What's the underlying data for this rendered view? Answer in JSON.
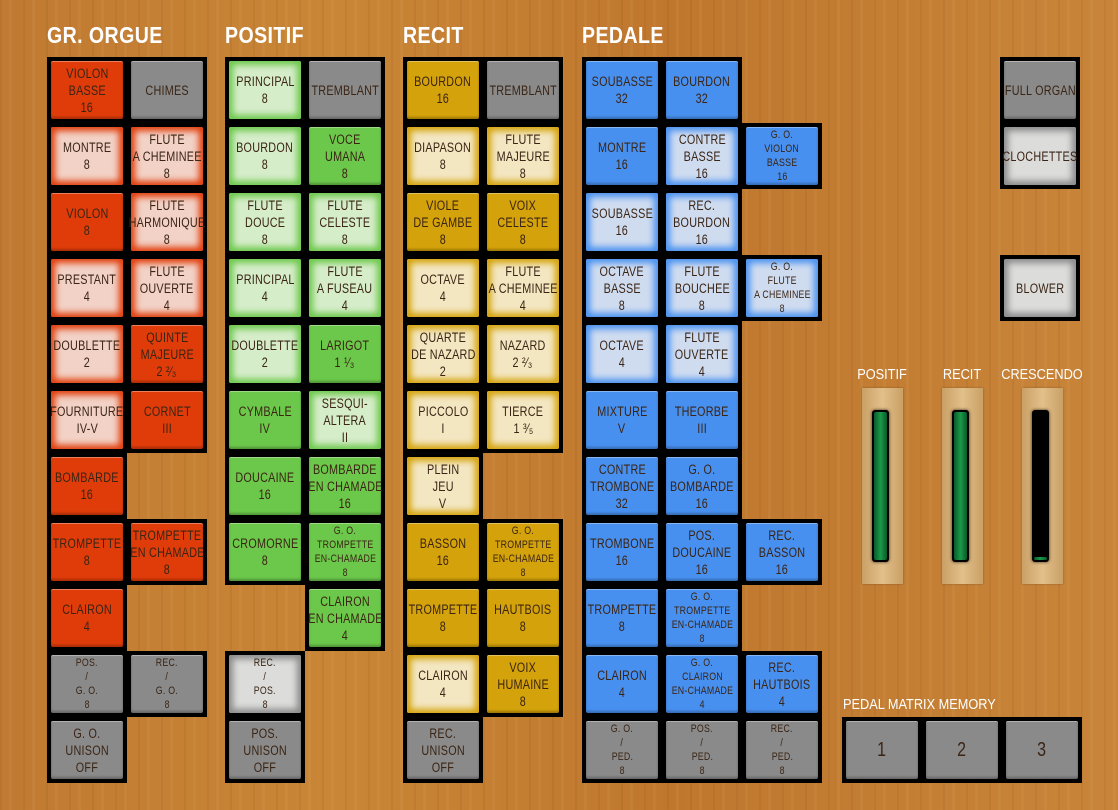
{
  "colors": {
    "gr_orgue": {
      "on": "#e03c0a",
      "off": "#f2d2c6"
    },
    "positif": {
      "on": "#6cc84a",
      "off": "#d6edca"
    },
    "recit": {
      "on": "#d4a20a",
      "off": "#f3e7c2"
    },
    "pedale": {
      "on": "#4890f0",
      "off": "#cfdcf0"
    },
    "coupler": {
      "on": "#8a8a8a",
      "off": "#dcdcda"
    }
  },
  "divisions": [
    {
      "title": "GR. ORGUE",
      "key": "gr_orgue",
      "rows": [
        [
          {
            "lines": [
              "VIOLON",
              "BASSE",
              "16"
            ],
            "on": true
          },
          {
            "lines": [
              "CHIMES"
            ],
            "on": true,
            "coupler": true
          }
        ],
        [
          {
            "lines": [
              "MONTRE",
              "8"
            ],
            "on": false
          },
          {
            "lines": [
              "FLUTE",
              "A CHEMINEE",
              "8"
            ],
            "on": false
          }
        ],
        [
          {
            "lines": [
              "VIOLON",
              "8"
            ],
            "on": true
          },
          {
            "lines": [
              "FLUTE",
              "HARMONIQUE",
              "8"
            ],
            "on": false
          }
        ],
        [
          {
            "lines": [
              "PRESTANT",
              "4"
            ],
            "on": false
          },
          {
            "lines": [
              "FLUTE",
              "OUVERTE",
              "4"
            ],
            "on": false
          }
        ],
        [
          {
            "lines": [
              "DOUBLETTE",
              "2"
            ],
            "on": false
          },
          {
            "lines": [
              "QUINTE",
              "MAJEURE",
              "2 ²⁄₃"
            ],
            "on": true
          }
        ],
        [
          {
            "lines": [
              "FOURNITURE",
              "IV-V"
            ],
            "on": false
          },
          {
            "lines": [
              "CORNET",
              "III"
            ],
            "on": true
          }
        ],
        [
          {
            "lines": [
              "BOMBARDE",
              "16"
            ],
            "on": true
          },
          null
        ],
        [
          {
            "lines": [
              "TROMPETTE",
              "8"
            ],
            "on": true
          },
          {
            "lines": [
              "TROMPETTE",
              "EN CHAMADE",
              "8"
            ],
            "on": true
          }
        ],
        [
          {
            "lines": [
              "CLAIRON",
              "4"
            ],
            "on": true
          },
          null
        ],
        [
          {
            "lines": [
              "POS.",
              "/",
              "G. O.",
              "8"
            ],
            "on": true,
            "coupler": true
          },
          {
            "lines": [
              "REC.",
              "/",
              "G. O.",
              "8"
            ],
            "on": true,
            "coupler": true
          }
        ],
        [
          {
            "lines": [
              "G. O.",
              "UNISON",
              "OFF"
            ],
            "on": true,
            "coupler": true
          },
          null
        ]
      ]
    },
    {
      "title": "POSITIF",
      "key": "positif",
      "rows": [
        [
          {
            "lines": [
              "PRINCIPAL",
              "8"
            ],
            "on": false
          },
          {
            "lines": [
              "TREMBLANT"
            ],
            "on": true,
            "coupler": true
          }
        ],
        [
          {
            "lines": [
              "BOURDON",
              "8"
            ],
            "on": false
          },
          {
            "lines": [
              "VOCE",
              "UMANA",
              "8"
            ],
            "on": true
          }
        ],
        [
          {
            "lines": [
              "FLUTE",
              "DOUCE",
              "8"
            ],
            "on": false
          },
          {
            "lines": [
              "FLUTE",
              "CELESTE",
              "8"
            ],
            "on": false
          }
        ],
        [
          {
            "lines": [
              "PRINCIPAL",
              "4"
            ],
            "on": false
          },
          {
            "lines": [
              "FLUTE",
              "A FUSEAU",
              "4"
            ],
            "on": false
          }
        ],
        [
          {
            "lines": [
              "DOUBLETTE",
              "2"
            ],
            "on": false
          },
          {
            "lines": [
              "LARIGOT",
              "1 ¹⁄₃"
            ],
            "on": true
          }
        ],
        [
          {
            "lines": [
              "CYMBALE",
              "IV"
            ],
            "on": true
          },
          {
            "lines": [
              "SESQUI-",
              "ALTERA",
              "II"
            ],
            "on": false
          }
        ],
        [
          {
            "lines": [
              "DOUCAINE",
              "16"
            ],
            "on": true
          },
          {
            "lines": [
              "BOMBARDE",
              "EN CHAMADE",
              "16"
            ],
            "on": true
          }
        ],
        [
          {
            "lines": [
              "CROMORNE",
              "8"
            ],
            "on": true
          },
          {
            "lines": [
              "G. O.",
              "TROMPETTE",
              "EN-CHAMADE",
              "8"
            ],
            "on": true
          }
        ],
        [
          null,
          {
            "lines": [
              "CLAIRON",
              "EN CHAMADE",
              "4"
            ],
            "on": true
          }
        ],
        [
          {
            "lines": [
              "REC.",
              "/",
              "POS.",
              "8"
            ],
            "on": false,
            "coupler": true
          },
          null
        ],
        [
          {
            "lines": [
              "POS.",
              "UNISON",
              "OFF"
            ],
            "on": true,
            "coupler": true
          },
          null
        ]
      ]
    },
    {
      "title": "RECIT",
      "key": "recit",
      "rows": [
        [
          {
            "lines": [
              "BOURDON",
              "16"
            ],
            "on": true
          },
          {
            "lines": [
              "TREMBLANT"
            ],
            "on": true,
            "coupler": true
          }
        ],
        [
          {
            "lines": [
              "DIAPASON",
              "8"
            ],
            "on": false
          },
          {
            "lines": [
              "FLUTE",
              "MAJEURE",
              "8"
            ],
            "on": false
          }
        ],
        [
          {
            "lines": [
              "VIOLE",
              "DE GAMBE",
              "8"
            ],
            "on": true
          },
          {
            "lines": [
              "VOIX",
              "CELESTE",
              "8"
            ],
            "on": true
          }
        ],
        [
          {
            "lines": [
              "OCTAVE",
              "4"
            ],
            "on": false
          },
          {
            "lines": [
              "FLUTE",
              "A CHEMINEE",
              "4"
            ],
            "on": false
          }
        ],
        [
          {
            "lines": [
              "QUARTE",
              "DE NAZARD",
              "2"
            ],
            "on": false
          },
          {
            "lines": [
              "NAZARD",
              "2 ²⁄₃"
            ],
            "on": false
          }
        ],
        [
          {
            "lines": [
              "PICCOLO",
              "I"
            ],
            "on": false
          },
          {
            "lines": [
              "TIERCE",
              "1 ³⁄₅"
            ],
            "on": false
          }
        ],
        [
          {
            "lines": [
              "PLEIN",
              "JEU",
              "V"
            ],
            "on": false
          },
          null
        ],
        [
          {
            "lines": [
              "BASSON",
              "16"
            ],
            "on": true
          },
          {
            "lines": [
              "G. O.",
              "TROMPETTE",
              "EN-CHAMADE",
              "8"
            ],
            "on": true
          }
        ],
        [
          {
            "lines": [
              "TROMPETTE",
              "8"
            ],
            "on": true
          },
          {
            "lines": [
              "HAUTBOIS",
              "8"
            ],
            "on": true
          }
        ],
        [
          {
            "lines": [
              "CLAIRON",
              "4"
            ],
            "on": false
          },
          {
            "lines": [
              "VOIX",
              "HUMAINE",
              "8"
            ],
            "on": true
          }
        ],
        [
          {
            "lines": [
              "REC.",
              "UNISON",
              "OFF"
            ],
            "on": true,
            "coupler": true
          },
          null
        ]
      ]
    },
    {
      "title": "PEDALE",
      "key": "pedale",
      "rows": [
        [
          {
            "lines": [
              "SOUBASSE",
              "32"
            ],
            "on": true
          },
          {
            "lines": [
              "BOURDON",
              "32"
            ],
            "on": true
          },
          null
        ],
        [
          {
            "lines": [
              "MONTRE",
              "16"
            ],
            "on": true
          },
          {
            "lines": [
              "CONTRE",
              "BASSE",
              "16"
            ],
            "on": false
          },
          {
            "lines": [
              "G. O.",
              "VIOLON",
              "BASSE",
              "16"
            ],
            "on": true
          }
        ],
        [
          {
            "lines": [
              "SOUBASSE",
              "16"
            ],
            "on": false
          },
          {
            "lines": [
              "REC.",
              "BOURDON",
              "16"
            ],
            "on": false
          },
          null
        ],
        [
          {
            "lines": [
              "OCTAVE",
              "BASSE",
              "8"
            ],
            "on": false
          },
          {
            "lines": [
              "FLUTE",
              "BOUCHEE",
              "8"
            ],
            "on": false
          },
          {
            "lines": [
              "G. O.",
              "FLUTE",
              "A CHEMINEE",
              "8"
            ],
            "on": false
          }
        ],
        [
          {
            "lines": [
              "OCTAVE",
              "4"
            ],
            "on": false
          },
          {
            "lines": [
              "FLUTE",
              "OUVERTE",
              "4"
            ],
            "on": false
          },
          null
        ],
        [
          {
            "lines": [
              "MIXTURE",
              "V"
            ],
            "on": true
          },
          {
            "lines": [
              "THEORBE",
              "III"
            ],
            "on": true
          },
          null
        ],
        [
          {
            "lines": [
              "CONTRE",
              "TROMBONE",
              "32"
            ],
            "on": true
          },
          {
            "lines": [
              "G. O.",
              "BOMBARDE",
              "16"
            ],
            "on": true
          },
          null
        ],
        [
          {
            "lines": [
              "TROMBONE",
              "16"
            ],
            "on": true
          },
          {
            "lines": [
              "POS.",
              "DOUCAINE",
              "16"
            ],
            "on": true
          },
          {
            "lines": [
              "REC.",
              "BASSON",
              "16"
            ],
            "on": true
          }
        ],
        [
          {
            "lines": [
              "TROMPETTE",
              "8"
            ],
            "on": true
          },
          {
            "lines": [
              "G. O.",
              "TROMPETTE",
              "EN-CHAMADE",
              "8"
            ],
            "on": true
          },
          null
        ],
        [
          {
            "lines": [
              "CLAIRON",
              "4"
            ],
            "on": true
          },
          {
            "lines": [
              "G. O.",
              "CLAIRON",
              "EN-CHAMADE",
              "4"
            ],
            "on": true
          },
          {
            "lines": [
              "REC.",
              "HAUTBOIS",
              "4"
            ],
            "on": true
          }
        ],
        [
          {
            "lines": [
              "G. O.",
              "/",
              "PED.",
              "8"
            ],
            "on": true,
            "coupler": true
          },
          {
            "lines": [
              "POS.",
              "/",
              "PED.",
              "8"
            ],
            "on": true,
            "coupler": true
          },
          {
            "lines": [
              "REC.",
              "/",
              "PED.",
              "8"
            ],
            "on": true,
            "coupler": true
          }
        ]
      ]
    }
  ],
  "general": [
    {
      "lines": [
        "FULL ORGAN"
      ],
      "on": true
    },
    {
      "lines": [
        "CLOCHETTES"
      ],
      "on": false
    },
    {
      "lines": [
        "BLOWER"
      ],
      "on": false
    }
  ],
  "expression": [
    {
      "label": "POSITIF",
      "level": 1.0
    },
    {
      "label": "RECIT",
      "level": 1.0
    },
    {
      "label": "CRESCENDO",
      "level": 0.02
    }
  ],
  "pedal_matrix": {
    "label": "PEDAL MATRIX MEMORY",
    "buttons": [
      {
        "lines": [
          "1"
        ],
        "on": true
      },
      {
        "lines": [
          "2"
        ],
        "on": true
      },
      {
        "lines": [
          "3"
        ],
        "on": true
      }
    ]
  }
}
